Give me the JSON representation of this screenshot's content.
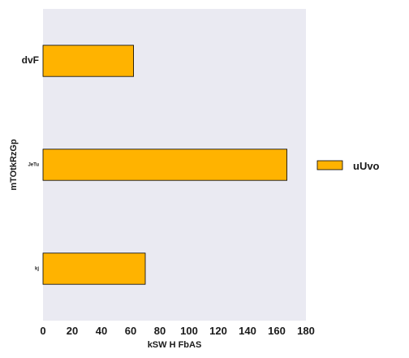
{
  "chart_data": {
    "type": "bar",
    "orientation": "horizontal",
    "categories": [
      "dvF",
      "JeTu",
      "kj"
    ],
    "series": [
      {
        "name": "uUvo",
        "values": [
          62,
          167,
          70
        ],
        "color": "#ffb300"
      }
    ],
    "xlabel": "kSW H FbAS",
    "ylabel": "mTOtkRzGp",
    "xlim": [
      0,
      180
    ],
    "xticks": [
      0,
      20,
      40,
      60,
      80,
      100,
      120,
      140,
      160,
      180
    ],
    "grid": false,
    "legend": "right",
    "plot_background": "#eaeaf2",
    "bar_edge_color": "#000000"
  }
}
